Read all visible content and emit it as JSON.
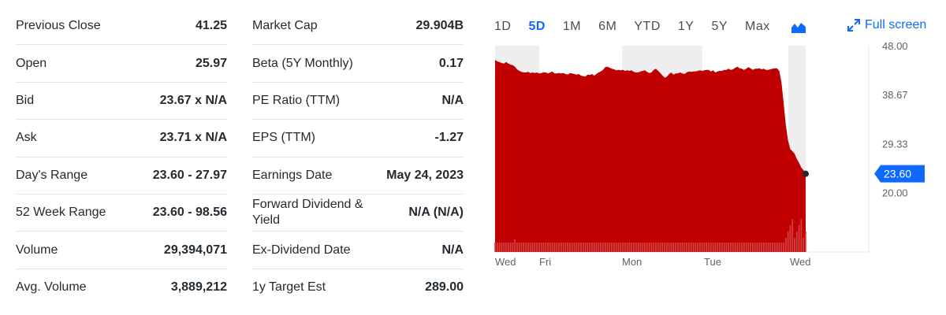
{
  "summary": {
    "left": [
      {
        "label": "Previous Close",
        "value": "41.25"
      },
      {
        "label": "Open",
        "value": "25.97"
      },
      {
        "label": "Bid",
        "value": "23.67 x N/A"
      },
      {
        "label": "Ask",
        "value": "23.71 x N/A"
      },
      {
        "label": "Day's Range",
        "value": "23.60 - 27.97"
      },
      {
        "label": "52 Week Range",
        "value": "23.60 - 98.56"
      },
      {
        "label": "Volume",
        "value": "29,394,071"
      },
      {
        "label": "Avg. Volume",
        "value": "3,889,212"
      }
    ],
    "right": [
      {
        "label": "Market Cap",
        "value": "29.904B"
      },
      {
        "label": "Beta (5Y Monthly)",
        "value": "0.17"
      },
      {
        "label": "PE Ratio (TTM)",
        "value": "N/A"
      },
      {
        "label": "EPS (TTM)",
        "value": "-1.27"
      },
      {
        "label": "Earnings Date",
        "value": "May 24, 2023"
      },
      {
        "label": "Forward Dividend & Yield",
        "value": "N/A (N/A)"
      },
      {
        "label": "Ex-Dividend Date",
        "value": "N/A"
      },
      {
        "label": "1y Target Est",
        "value": "289.00"
      }
    ]
  },
  "range_tabs": {
    "items": [
      "1D",
      "5D",
      "1M",
      "6M",
      "YTD",
      "1Y",
      "5Y",
      "Max"
    ],
    "active": "5D",
    "chart_type_icon": "mountain-chart-icon",
    "fullscreen_label": "Full screen",
    "fullscreen_icon": "expand-arrows-icon"
  },
  "colors": {
    "accent": "#0f69ff",
    "area": "#c00000",
    "price_tag": "#0f69ff",
    "text": "#232a31"
  },
  "chart_data": {
    "type": "area",
    "x_labels": [
      "Wed",
      "Fri",
      "Mon",
      "Tue",
      "Wed"
    ],
    "y_ticks": [
      "48.00",
      "38.67",
      "29.33",
      "20.00"
    ],
    "ylim": [
      8.7,
      48.0
    ],
    "current_price": "23.60",
    "series": [
      {
        "values": [
          45.3,
          45.0,
          44.9,
          44.7,
          44.6,
          44.9,
          44.6,
          44.4,
          44.3,
          44.0,
          43.5,
          43.2,
          43.0,
          42.9,
          42.9,
          43.0,
          42.8,
          42.9,
          42.8,
          42.9,
          42.7,
          42.8,
          42.9,
          42.9,
          42.7,
          42.9,
          43.1,
          42.7,
          42.7,
          42.8,
          42.7,
          42.8,
          42.6,
          42.5,
          42.8,
          42.7,
          42.6,
          42.5,
          42.6,
          42.3,
          42.2,
          42.1,
          42.5,
          42.4,
          42.6,
          42.3,
          42.6,
          42.9,
          43.1,
          43.4,
          43.9,
          44.0,
          43.8,
          43.6,
          43.5,
          43.3,
          43.4,
          43.3,
          43.4,
          43.2,
          43.3,
          43.2,
          43.3,
          43.0,
          42.9,
          42.9,
          43.1,
          43.2,
          43.3,
          43.0,
          42.8,
          42.9,
          43.4,
          43.6,
          43.2,
          42.8,
          42.3,
          41.9,
          42.1,
          42.6,
          42.9,
          42.5,
          42.7,
          42.7,
          42.9,
          42.7,
          42.6,
          42.9,
          43.1,
          43.0,
          43.1,
          43.1,
          43.2,
          43.3,
          43.2,
          43.3,
          43.4,
          43.4,
          43.1,
          43.3,
          42.9,
          43.1,
          43.2,
          43.2,
          43.4,
          43.4,
          43.6,
          43.4,
          43.5,
          43.8,
          44.0,
          43.7,
          43.6,
          43.4,
          43.6,
          43.9,
          43.7,
          43.4,
          43.6,
          43.6,
          43.7,
          43.5,
          43.6,
          43.4,
          43.4,
          43.5,
          43.6,
          43.7,
          43.7,
          43.2,
          41.0,
          37.0,
          32.8,
          30.0,
          28.3,
          27.9,
          27.4,
          26.4,
          25.7,
          24.8,
          24.3,
          23.6
        ]
      }
    ],
    "volume_series_markers": "red volume bars along bottom"
  }
}
